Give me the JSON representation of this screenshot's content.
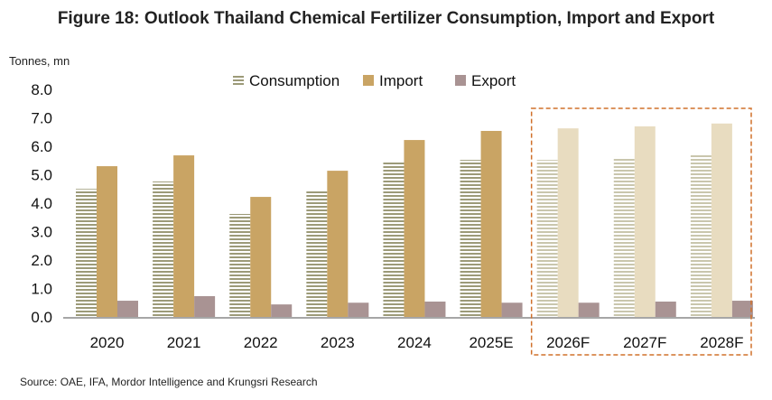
{
  "chart_data": {
    "type": "bar",
    "title": "Figure 18: Outlook Thailand Chemical Fertilizer Consumption, Import and Export",
    "ylabel": "Tonnes, mn",
    "xlabel": "",
    "ylim": [
      0,
      8
    ],
    "yticks": [
      "0.0",
      "1.0",
      "2.0",
      "3.0",
      "4.0",
      "5.0",
      "6.0",
      "7.0",
      "8.0"
    ],
    "categories": [
      "2020",
      "2021",
      "2022",
      "2023",
      "2024",
      "2025E",
      "2026F",
      "2027F",
      "2028F"
    ],
    "forecast_categories": [
      "2026F",
      "2027F",
      "2028F"
    ],
    "series": [
      {
        "name": "Consumption",
        "color": "#9c9a78",
        "forecast_color": "#c9c6ad",
        "pattern": "horizontal-stripes",
        "values": [
          4.5,
          4.76,
          3.62,
          4.44,
          5.43,
          5.52,
          5.52,
          5.62,
          5.72
        ]
      },
      {
        "name": "Import",
        "color": "#c9a464",
        "forecast_color": "#e8dcc0",
        "values": [
          5.3,
          5.68,
          4.22,
          5.14,
          6.22,
          6.54,
          6.63,
          6.7,
          6.8
        ]
      },
      {
        "name": "Export",
        "color": "#a99393",
        "forecast_color": "#a99393",
        "values": [
          0.57,
          0.73,
          0.44,
          0.5,
          0.54,
          0.5,
          0.5,
          0.54,
          0.57
        ]
      }
    ],
    "legend_position": "top",
    "grid": false,
    "highlight_color": "#d0702a"
  },
  "source": "Source: OAE, IFA, Mordor Intelligence and Krungsri Research"
}
